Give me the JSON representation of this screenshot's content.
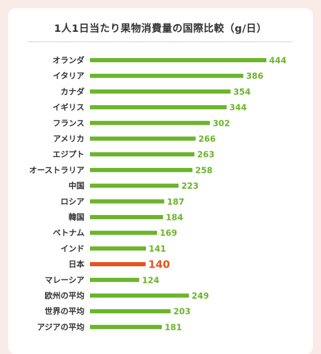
{
  "chart_data": {
    "type": "bar",
    "orientation": "horizontal",
    "title": "1人1日当たり果物消費量の国際比較（g/日）",
    "categories": [
      "オランダ",
      "イタリア",
      "カナダ",
      "イギリス",
      "フランス",
      "アメリカ",
      "エジプト",
      "オーストラリア",
      "中国",
      "ロシア",
      "韓国",
      "ベトナム",
      "インド",
      "日本",
      "マレーシア",
      "欧州の平均",
      "世界の平均",
      "アジアの平均"
    ],
    "values": [
      444,
      386,
      354,
      344,
      302,
      266,
      263,
      258,
      223,
      187,
      184,
      169,
      141,
      140,
      124,
      249,
      203,
      181
    ],
    "highlight_category": "日本",
    "bar_color": "#6bb52a",
    "highlight_color": "#e4531c",
    "grid": false,
    "legend": "none"
  }
}
